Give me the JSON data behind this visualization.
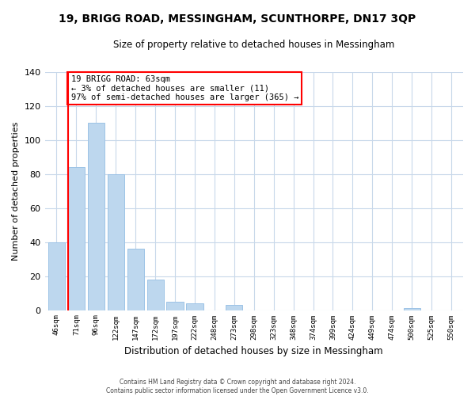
{
  "title": "19, BRIGG ROAD, MESSINGHAM, SCUNTHORPE, DN17 3QP",
  "subtitle": "Size of property relative to detached houses in Messingham",
  "xlabel": "Distribution of detached houses by size in Messingham",
  "ylabel": "Number of detached properties",
  "bar_labels": [
    "46sqm",
    "71sqm",
    "96sqm",
    "122sqm",
    "147sqm",
    "172sqm",
    "197sqm",
    "222sqm",
    "248sqm",
    "273sqm",
    "298sqm",
    "323sqm",
    "348sqm",
    "374sqm",
    "399sqm",
    "424sqm",
    "449sqm",
    "474sqm",
    "500sqm",
    "525sqm",
    "550sqm"
  ],
  "bar_values": [
    40,
    84,
    110,
    80,
    36,
    18,
    5,
    4,
    0,
    3,
    0,
    0,
    0,
    0,
    0,
    0,
    0,
    0,
    1,
    0,
    0
  ],
  "bar_color": "#bdd7ee",
  "bar_edge_color": "#9dc3e6",
  "highlight_color": "#ff0000",
  "ylim": [
    0,
    140
  ],
  "yticks": [
    0,
    20,
    40,
    60,
    80,
    100,
    120,
    140
  ],
  "annotation_title": "19 BRIGG ROAD: 63sqm",
  "annotation_line1": "← 3% of detached houses are smaller (11)",
  "annotation_line2": "97% of semi-detached houses are larger (365) →",
  "footer_line1": "Contains HM Land Registry data © Crown copyright and database right 2024.",
  "footer_line2": "Contains public sector information licensed under the Open Government Licence v3.0.",
  "background_color": "#ffffff",
  "grid_color": "#c8d8ea"
}
